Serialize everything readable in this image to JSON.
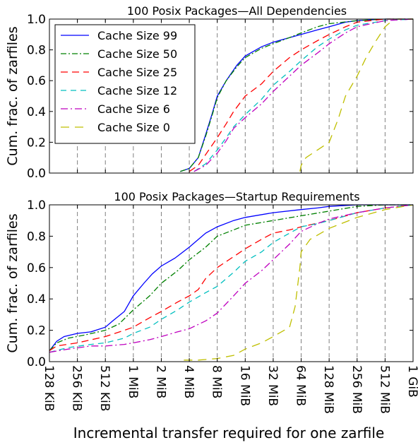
{
  "xlabel": "Incremental transfer required for one zarfile",
  "colors": {
    "Cache Size 99": "#0000ff",
    "Cache Size 50": "#008000",
    "Cache Size 25": "#ff0000",
    "Cache Size 12": "#00bfbf",
    "Cache Size 6": "#bf00bf",
    "Cache Size 0": "#bfbf00"
  },
  "chart_data": [
    {
      "type": "line",
      "title": "100 Posix Packages—All Dependencies",
      "ylabel": "Cum. frac. of zarfiles",
      "xscale": "log2",
      "xlim": [
        "128 KiB",
        "1 GiB"
      ],
      "ylim": [
        0,
        1.0
      ],
      "x_ticks": [
        "128 KiB",
        "256 KiB",
        "512 KiB",
        "1 MiB",
        "2 MiB",
        "4 MiB",
        "8 MiB",
        "16 MiB",
        "32 MiB",
        "64 MiB",
        "128 MiB",
        "256 MiB",
        "512 MiB",
        "1 GiB"
      ],
      "y_ticks": [
        "0.0",
        "0.2",
        "0.4",
        "0.6",
        "0.8",
        "1.0"
      ],
      "grid": "vertical dashed at x ticks",
      "legend": "upper-left",
      "series": [
        {
          "name": "Cache Size 99",
          "points": [
            [
              3.2,
              0.01
            ],
            [
              4,
              0.03
            ],
            [
              5,
              0.1
            ],
            [
              6,
              0.25
            ],
            [
              7,
              0.38
            ],
            [
              8,
              0.5
            ],
            [
              10,
              0.6
            ],
            [
              13,
              0.7
            ],
            [
              16,
              0.76
            ],
            [
              24,
              0.82
            ],
            [
              32,
              0.85
            ],
            [
              48,
              0.88
            ],
            [
              64,
              0.9
            ],
            [
              96,
              0.93
            ],
            [
              128,
              0.95
            ],
            [
              192,
              0.98
            ],
            [
              256,
              0.99
            ],
            [
              512,
              1.0
            ],
            [
              1024,
              1.0
            ]
          ]
        },
        {
          "name": "Cache Size 50",
          "points": [
            [
              3.2,
              0.01
            ],
            [
              4,
              0.03
            ],
            [
              5,
              0.1
            ],
            [
              6,
              0.24
            ],
            [
              7,
              0.37
            ],
            [
              8,
              0.49
            ],
            [
              10,
              0.6
            ],
            [
              13,
              0.69
            ],
            [
              16,
              0.75
            ],
            [
              24,
              0.81
            ],
            [
              32,
              0.84
            ],
            [
              48,
              0.88
            ],
            [
              64,
              0.91
            ],
            [
              96,
              0.95
            ],
            [
              128,
              0.97
            ],
            [
              256,
              0.99
            ],
            [
              512,
              1.0
            ],
            [
              1024,
              1.0
            ]
          ]
        },
        {
          "name": "Cache Size 25",
          "points": [
            [
              4,
              0.01
            ],
            [
              5,
              0.05
            ],
            [
              6,
              0.12
            ],
            [
              8,
              0.23
            ],
            [
              10,
              0.32
            ],
            [
              12,
              0.4
            ],
            [
              16,
              0.5
            ],
            [
              24,
              0.58
            ],
            [
              32,
              0.66
            ],
            [
              48,
              0.75
            ],
            [
              64,
              0.8
            ],
            [
              96,
              0.86
            ],
            [
              128,
              0.9
            ],
            [
              192,
              0.95
            ],
            [
              256,
              0.98
            ],
            [
              512,
              1.0
            ],
            [
              1024,
              1.0
            ]
          ]
        },
        {
          "name": "Cache Size 12",
          "points": [
            [
              4.5,
              0.01
            ],
            [
              6,
              0.06
            ],
            [
              8,
              0.15
            ],
            [
              10,
              0.23
            ],
            [
              12,
              0.3
            ],
            [
              16,
              0.38
            ],
            [
              24,
              0.48
            ],
            [
              32,
              0.57
            ],
            [
              48,
              0.66
            ],
            [
              64,
              0.73
            ],
            [
              96,
              0.82
            ],
            [
              128,
              0.87
            ],
            [
              192,
              0.93
            ],
            [
              256,
              0.96
            ],
            [
              512,
              0.99
            ],
            [
              1024,
              1.0
            ]
          ]
        },
        {
          "name": "Cache Size 6",
          "points": [
            [
              4.5,
              0.01
            ],
            [
              6,
              0.05
            ],
            [
              8,
              0.13
            ],
            [
              10,
              0.21
            ],
            [
              12,
              0.29
            ],
            [
              16,
              0.36
            ],
            [
              24,
              0.45
            ],
            [
              32,
              0.53
            ],
            [
              48,
              0.63
            ],
            [
              64,
              0.7
            ],
            [
              96,
              0.78
            ],
            [
              128,
              0.84
            ],
            [
              192,
              0.91
            ],
            [
              256,
              0.95
            ],
            [
              512,
              0.99
            ],
            [
              1024,
              1.0
            ]
          ]
        },
        {
          "name": "Cache Size 0",
          "points": [
            [
              62,
              0.01
            ],
            [
              64,
              0.05
            ],
            [
              72,
              0.1
            ],
            [
              96,
              0.15
            ],
            [
              128,
              0.2
            ],
            [
              160,
              0.35
            ],
            [
              192,
              0.5
            ],
            [
              256,
              0.63
            ],
            [
              320,
              0.75
            ],
            [
              400,
              0.85
            ],
            [
              512,
              0.95
            ],
            [
              640,
              1.0
            ],
            [
              1024,
              1.0
            ]
          ]
        }
      ]
    },
    {
      "type": "line",
      "title": "100 Posix Packages—Startup Requirements",
      "ylabel": "Cum. frac. of zarfiles",
      "xscale": "log2",
      "xlim": [
        "128 KiB",
        "1 GiB"
      ],
      "ylim": [
        0,
        1.0
      ],
      "x_ticks": [
        "128 KiB",
        "256 KiB",
        "512 KiB",
        "1 MiB",
        "2 MiB",
        "4 MiB",
        "8 MiB",
        "16 MiB",
        "32 MiB",
        "64 MiB",
        "128 MiB",
        "256 MiB",
        "512 MiB",
        "1 GiB"
      ],
      "y_ticks": [
        "0.0",
        "0.2",
        "0.4",
        "0.6",
        "0.8",
        "1.0"
      ],
      "grid": "vertical dashed at x ticks",
      "series": [
        {
          "name": "Cache Size 99",
          "points": [
            [
              0.125,
              0.07
            ],
            [
              0.15,
              0.13
            ],
            [
              0.18,
              0.16
            ],
            [
              0.25,
              0.18
            ],
            [
              0.35,
              0.19
            ],
            [
              0.5,
              0.22
            ],
            [
              0.6,
              0.26
            ],
            [
              0.8,
              0.32
            ],
            [
              1,
              0.42
            ],
            [
              1.3,
              0.5
            ],
            [
              1.6,
              0.56
            ],
            [
              2,
              0.61
            ],
            [
              2.8,
              0.66
            ],
            [
              4,
              0.73
            ],
            [
              6,
              0.82
            ],
            [
              8,
              0.86
            ],
            [
              12,
              0.9
            ],
            [
              16,
              0.92
            ],
            [
              32,
              0.95
            ],
            [
              64,
              0.97
            ],
            [
              96,
              0.98
            ],
            [
              128,
              0.99
            ],
            [
              256,
              1.0
            ],
            [
              1024,
              1.0
            ]
          ]
        },
        {
          "name": "Cache Size 50",
          "points": [
            [
              0.125,
              0.07
            ],
            [
              0.15,
              0.12
            ],
            [
              0.2,
              0.15
            ],
            [
              0.3,
              0.17
            ],
            [
              0.5,
              0.2
            ],
            [
              0.7,
              0.24
            ],
            [
              1,
              0.33
            ],
            [
              1.5,
              0.42
            ],
            [
              2,
              0.5
            ],
            [
              3,
              0.58
            ],
            [
              4,
              0.65
            ],
            [
              6,
              0.73
            ],
            [
              8,
              0.8
            ],
            [
              12,
              0.84
            ],
            [
              16,
              0.87
            ],
            [
              32,
              0.9
            ],
            [
              64,
              0.93
            ],
            [
              128,
              0.96
            ],
            [
              256,
              0.99
            ],
            [
              512,
              1.0
            ],
            [
              1024,
              1.0
            ]
          ]
        },
        {
          "name": "Cache Size 25",
          "points": [
            [
              0.125,
              0.07
            ],
            [
              0.15,
              0.1
            ],
            [
              0.25,
              0.12
            ],
            [
              0.5,
              0.16
            ],
            [
              0.8,
              0.2
            ],
            [
              1,
              0.22
            ],
            [
              1.5,
              0.28
            ],
            [
              2,
              0.32
            ],
            [
              3,
              0.38
            ],
            [
              4,
              0.42
            ],
            [
              5,
              0.46
            ],
            [
              6,
              0.53
            ],
            [
              8,
              0.6
            ],
            [
              12,
              0.67
            ],
            [
              16,
              0.72
            ],
            [
              24,
              0.78
            ],
            [
              32,
              0.82
            ],
            [
              48,
              0.84
            ],
            [
              64,
              0.86
            ],
            [
              128,
              0.9
            ],
            [
              256,
              0.95
            ],
            [
              512,
              0.98
            ],
            [
              1024,
              1.0
            ]
          ]
        },
        {
          "name": "Cache Size 12",
          "points": [
            [
              0.125,
              0.06
            ],
            [
              0.2,
              0.09
            ],
            [
              0.35,
              0.11
            ],
            [
              0.5,
              0.12
            ],
            [
              0.8,
              0.15
            ],
            [
              1,
              0.18
            ],
            [
              1.5,
              0.22
            ],
            [
              2,
              0.27
            ],
            [
              3,
              0.33
            ],
            [
              4,
              0.38
            ],
            [
              6,
              0.44
            ],
            [
              8,
              0.48
            ],
            [
              12,
              0.57
            ],
            [
              16,
              0.64
            ],
            [
              24,
              0.7
            ],
            [
              32,
              0.76
            ],
            [
              48,
              0.82
            ],
            [
              64,
              0.86
            ],
            [
              96,
              0.88
            ],
            [
              128,
              0.9
            ],
            [
              256,
              0.95
            ],
            [
              512,
              0.98
            ],
            [
              1024,
              1.0
            ]
          ]
        },
        {
          "name": "Cache Size 6",
          "points": [
            [
              0.125,
              0.06
            ],
            [
              0.2,
              0.08
            ],
            [
              0.35,
              0.1
            ],
            [
              0.5,
              0.1
            ],
            [
              0.8,
              0.11
            ],
            [
              1,
              0.12
            ],
            [
              1.5,
              0.14
            ],
            [
              2,
              0.16
            ],
            [
              3,
              0.19
            ],
            [
              4,
              0.21
            ],
            [
              6,
              0.26
            ],
            [
              8,
              0.31
            ],
            [
              12,
              0.42
            ],
            [
              16,
              0.5
            ],
            [
              24,
              0.58
            ],
            [
              32,
              0.65
            ],
            [
              48,
              0.75
            ],
            [
              64,
              0.83
            ],
            [
              96,
              0.88
            ],
            [
              128,
              0.91
            ],
            [
              256,
              0.95
            ],
            [
              512,
              0.98
            ],
            [
              1024,
              1.0
            ]
          ]
        },
        {
          "name": "Cache Size 0",
          "points": [
            [
              3.5,
              0.01
            ],
            [
              5,
              0.01
            ],
            [
              8,
              0.02
            ],
            [
              12,
              0.04
            ],
            [
              16,
              0.08
            ],
            [
              24,
              0.12
            ],
            [
              32,
              0.16
            ],
            [
              48,
              0.22
            ],
            [
              55,
              0.35
            ],
            [
              62,
              0.6
            ],
            [
              64,
              0.7
            ],
            [
              80,
              0.78
            ],
            [
              128,
              0.85
            ],
            [
              256,
              0.92
            ],
            [
              512,
              0.97
            ],
            [
              1024,
              1.0
            ]
          ]
        }
      ]
    }
  ]
}
